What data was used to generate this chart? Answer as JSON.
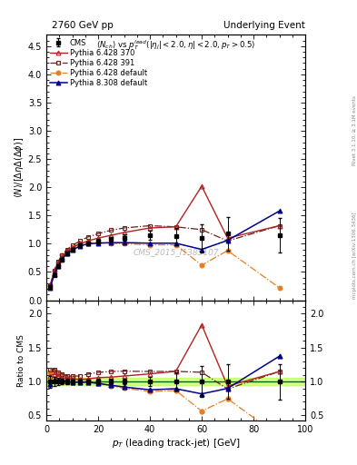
{
  "title_left": "2760 GeV pp",
  "title_right": "Underlying Event",
  "ylabel_main": "$\\langle N\\rangle/[\\Delta\\eta\\Delta(\\Delta\\phi)]$",
  "ylabel_ratio": "Ratio to CMS",
  "xlabel": "$p_T$ (leading track-jet) [GeV]",
  "annotation_main": "$\\langle N_{ch}\\rangle$ vs $p_T^{lead}(|\\eta_j|<2.0, \\eta|<2.0, p_T>0.5)$",
  "watermark": "CMS_2015_I1385107",
  "right_label": "mcplots.cern.ch [arXiv:1306.3436]",
  "rivet_label": "Rivet 3.1.10, ≥ 3.1M events",
  "ylim_main": [
    0.0,
    4.7
  ],
  "ylim_ratio": [
    0.42,
    2.2
  ],
  "xlim": [
    0,
    100
  ],
  "cms_x": [
    1.5,
    3.0,
    4.5,
    6.0,
    8.0,
    10.0,
    13.0,
    16.0,
    20.0,
    25.0,
    30.0,
    40.0,
    50.0,
    60.0,
    70.0,
    90.0
  ],
  "cms_y": [
    0.23,
    0.45,
    0.6,
    0.72,
    0.83,
    0.9,
    0.97,
    1.01,
    1.04,
    1.08,
    1.11,
    1.15,
    1.13,
    1.1,
    1.18,
    1.15
  ],
  "cms_yerr": [
    0.02,
    0.03,
    0.03,
    0.03,
    0.03,
    0.03,
    0.03,
    0.03,
    0.04,
    0.04,
    0.05,
    0.08,
    0.15,
    0.25,
    0.3,
    0.3
  ],
  "p6_370_x": [
    1.5,
    3.0,
    4.5,
    6.0,
    8.0,
    10.0,
    13.0,
    16.0,
    20.0,
    25.0,
    30.0,
    40.0,
    50.0,
    60.0,
    70.0,
    90.0
  ],
  "p6_370_y": [
    0.25,
    0.5,
    0.65,
    0.76,
    0.87,
    0.93,
    1.0,
    1.05,
    1.1,
    1.15,
    1.2,
    1.28,
    1.3,
    2.02,
    1.1,
    1.32
  ],
  "p6_370_color": "#b22222",
  "p6_370_label": "Pythia 6.428 370",
  "p6_391_x": [
    1.5,
    3.0,
    4.5,
    6.0,
    8.0,
    10.0,
    13.0,
    16.0,
    20.0,
    25.0,
    30.0,
    40.0,
    50.0,
    60.0,
    70.0,
    90.0
  ],
  "p6_391_y": [
    0.27,
    0.53,
    0.68,
    0.8,
    0.9,
    0.97,
    1.05,
    1.12,
    1.18,
    1.24,
    1.28,
    1.32,
    1.3,
    1.25,
    1.05,
    1.32
  ],
  "p6_391_color": "#6b2020",
  "p6_391_label": "Pythia 6.428 391",
  "p6_def_x": [
    1.5,
    3.0,
    4.5,
    6.0,
    8.0,
    10.0,
    13.0,
    16.0,
    20.0,
    25.0,
    30.0,
    40.0,
    50.0,
    60.0,
    70.0,
    90.0
  ],
  "p6_def_y": [
    0.26,
    0.52,
    0.67,
    0.79,
    0.88,
    0.95,
    1.0,
    1.02,
    1.02,
    1.01,
    1.0,
    0.98,
    0.98,
    0.62,
    0.88,
    0.22
  ],
  "p6_def_color": "#e67e22",
  "p6_def_label": "Pythia 6.428 default",
  "p8_def_x": [
    1.5,
    3.0,
    4.5,
    6.0,
    8.0,
    10.0,
    13.0,
    16.0,
    20.0,
    25.0,
    30.0,
    40.0,
    50.0,
    60.0,
    70.0,
    90.0
  ],
  "p8_def_y": [
    0.22,
    0.46,
    0.61,
    0.73,
    0.83,
    0.89,
    0.96,
    1.0,
    1.01,
    1.02,
    1.02,
    1.01,
    1.01,
    0.9,
    1.06,
    1.58
  ],
  "p8_def_color": "#00008b",
  "p8_def_label": "Pythia 8.308 default",
  "ratio_band_color": "#adff2f",
  "ratio_band_alpha": 0.55,
  "ratio_band_lo": 0.95,
  "ratio_band_hi": 1.05,
  "ratio_line_color": "#006400"
}
